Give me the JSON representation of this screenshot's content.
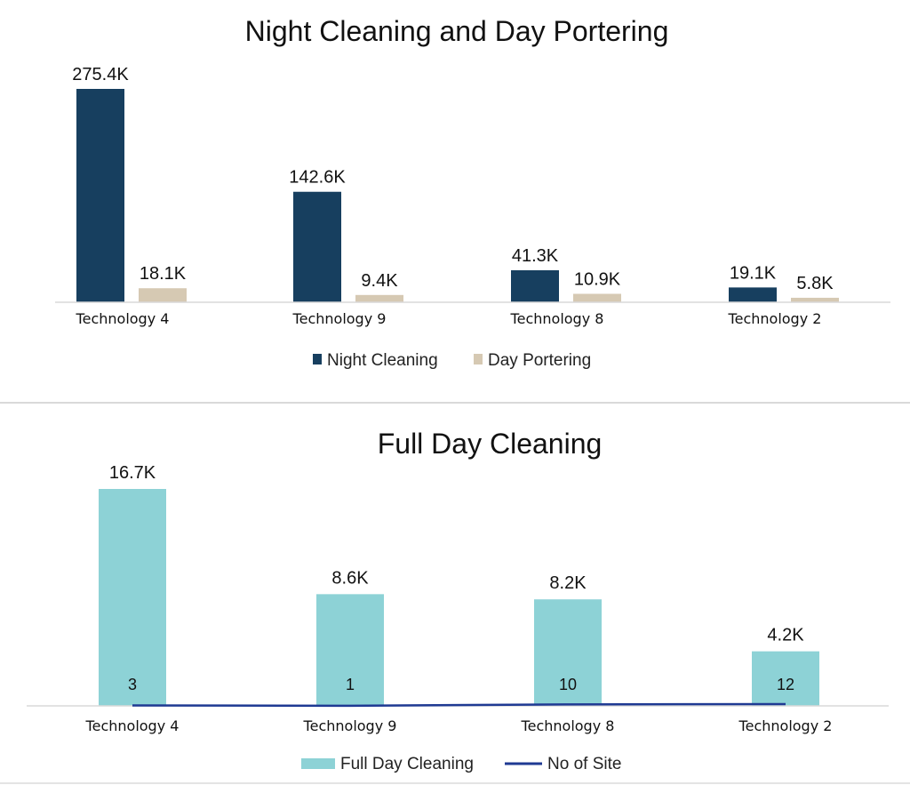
{
  "chart_data": [
    {
      "type": "bar",
      "title": "Night Cleaning and Day Portering",
      "categories": [
        "Technology 4",
        "Technology 9",
        "Technology 8",
        "Technology 2"
      ],
      "series": [
        {
          "name": "Night Cleaning",
          "values": [
            275.4,
            142.6,
            41.3,
            19.1
          ],
          "labels": [
            "275.4K",
            "142.6K",
            "41.3K",
            "19.1K"
          ],
          "color": "#173f5f"
        },
        {
          "name": "Day Portering",
          "values": [
            18.1,
            9.4,
            10.9,
            5.8
          ],
          "labels": [
            "18.1K",
            "9.4K",
            "10.9K",
            "5.8K"
          ],
          "color": "#d6c9b3"
        }
      ],
      "unit": "K",
      "ylim": [
        0,
        275.4
      ],
      "grid": false,
      "legend": "bottom"
    },
    {
      "type": "bar",
      "title": "Full Day Cleaning",
      "categories": [
        "Technology 4",
        "Technology 9",
        "Technology 8",
        "Technology 2"
      ],
      "series": [
        {
          "name": "Full Day Cleaning",
          "values": [
            16.7,
            8.6,
            8.2,
            4.2
          ],
          "labels": [
            "16.7K",
            "8.6K",
            "8.2K",
            "4.2K"
          ],
          "color": "#8dd2d6"
        },
        {
          "name": "No of Site",
          "type": "line",
          "values": [
            3,
            1,
            10,
            12
          ],
          "labels": [
            "3",
            "1",
            "10",
            "12"
          ],
          "color": "#1f3a93"
        }
      ],
      "unit": "K",
      "ylim": [
        0,
        16.7
      ],
      "grid": false,
      "legend": "bottom"
    }
  ]
}
